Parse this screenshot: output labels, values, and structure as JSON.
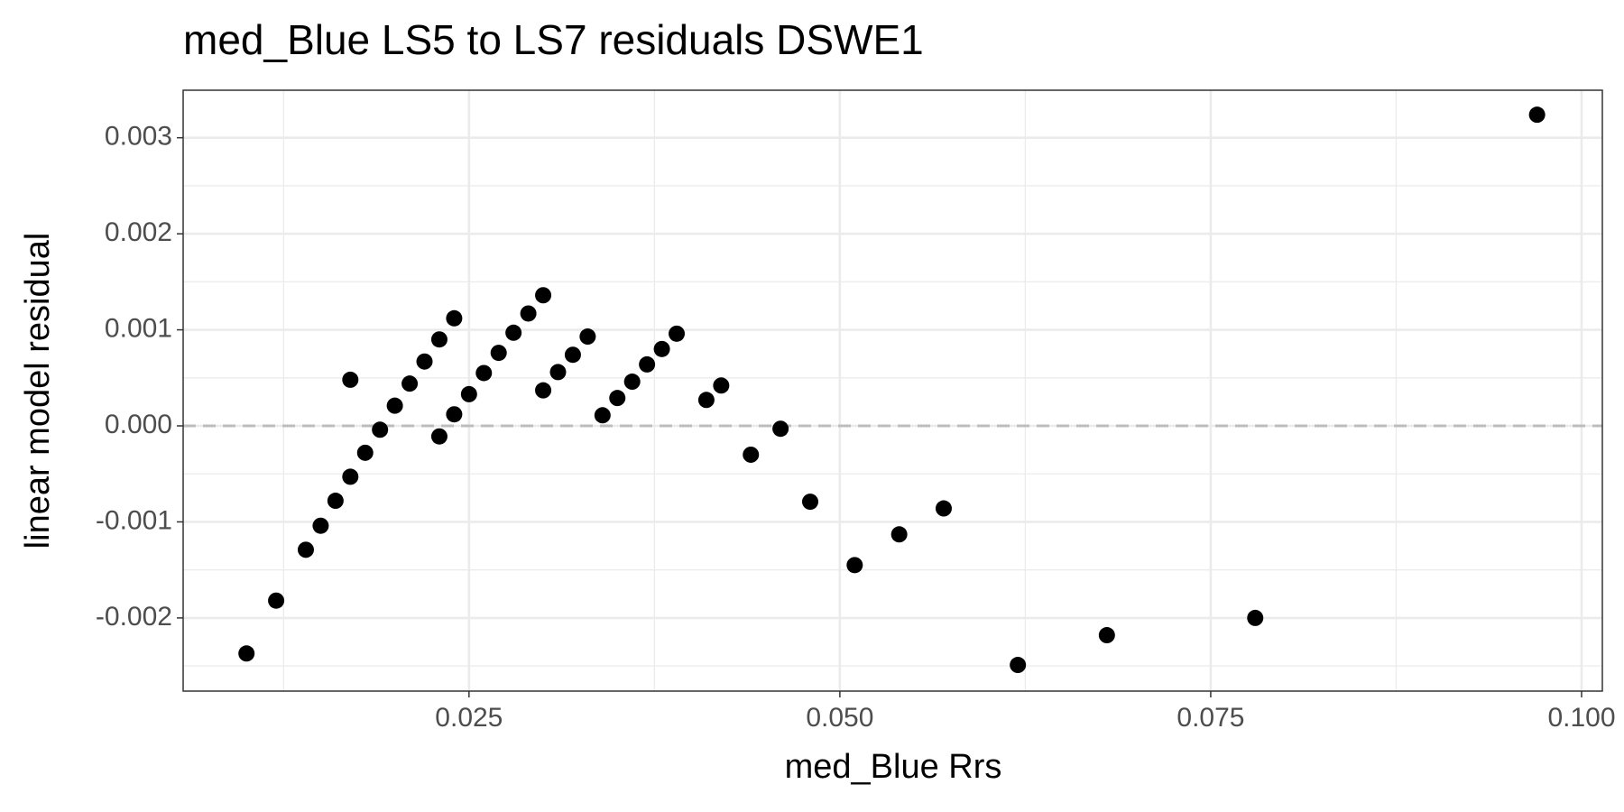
{
  "chart_data": {
    "type": "scatter",
    "title": "med_Blue LS5 to LS7 residuals DSWE1",
    "xlabel": "med_Blue  Rrs",
    "ylabel": "linear model residual",
    "x": [
      0.01,
      0.012,
      0.014,
      0.015,
      0.016,
      0.017,
      0.017,
      0.018,
      0.019,
      0.02,
      0.021,
      0.022,
      0.023,
      0.023,
      0.024,
      0.024,
      0.025,
      0.026,
      0.027,
      0.028,
      0.029,
      0.03,
      0.03,
      0.031,
      0.032,
      0.033,
      0.034,
      0.035,
      0.036,
      0.037,
      0.038,
      0.039,
      0.041,
      0.042,
      0.044,
      0.046,
      0.048,
      0.051,
      0.054,
      0.057,
      0.062,
      0.068,
      0.078,
      0.097
    ],
    "series": [
      {
        "color": "#000000",
        "values": [
          -0.00237,
          -0.00182,
          -0.00129,
          -0.00104,
          -0.00078,
          -0.00053,
          0.00048,
          -0.00028,
          -4e-05,
          0.00021,
          0.00044,
          0.00067,
          0.0009,
          -0.00011,
          0.00112,
          0.00012,
          0.00033,
          0.00055,
          0.00076,
          0.00097,
          0.00117,
          0.00136,
          0.00037,
          0.00056,
          0.00074,
          0.00093,
          0.00011,
          0.00029,
          0.00046,
          0.00064,
          0.0008,
          0.00096,
          0.00027,
          0.00042,
          -0.0003,
          -3e-05,
          -0.00079,
          -0.00145,
          -0.00113,
          -0.00086,
          -0.00249,
          -0.00218,
          -0.002,
          0.00324
        ]
      }
    ],
    "xlim": [
      0.00573,
      0.1014
    ],
    "ylim": [
      -0.002762,
      0.003495
    ],
    "xticks": [
      0.025,
      {
        "value": 0.05,
        "label": "0.050"
      },
      0.075,
      {
        "value": 0.1,
        "label": "0.100"
      }
    ],
    "yticks": [
      -0.002,
      -0.001,
      {
        "value": 0,
        "label": "0.000"
      },
      0.001,
      0.002,
      0.003
    ],
    "x_minor_ticks": [
      0.0125,
      0.0375,
      0.0625,
      0.0875
    ],
    "y_minor_ticks": [
      -0.0025,
      -0.0015,
      -0.0005,
      0.0005,
      0.0015,
      0.0025
    ],
    "hline": {
      "value": 0,
      "color": "#bdbdbd",
      "dashed": true
    },
    "grid": true
  }
}
